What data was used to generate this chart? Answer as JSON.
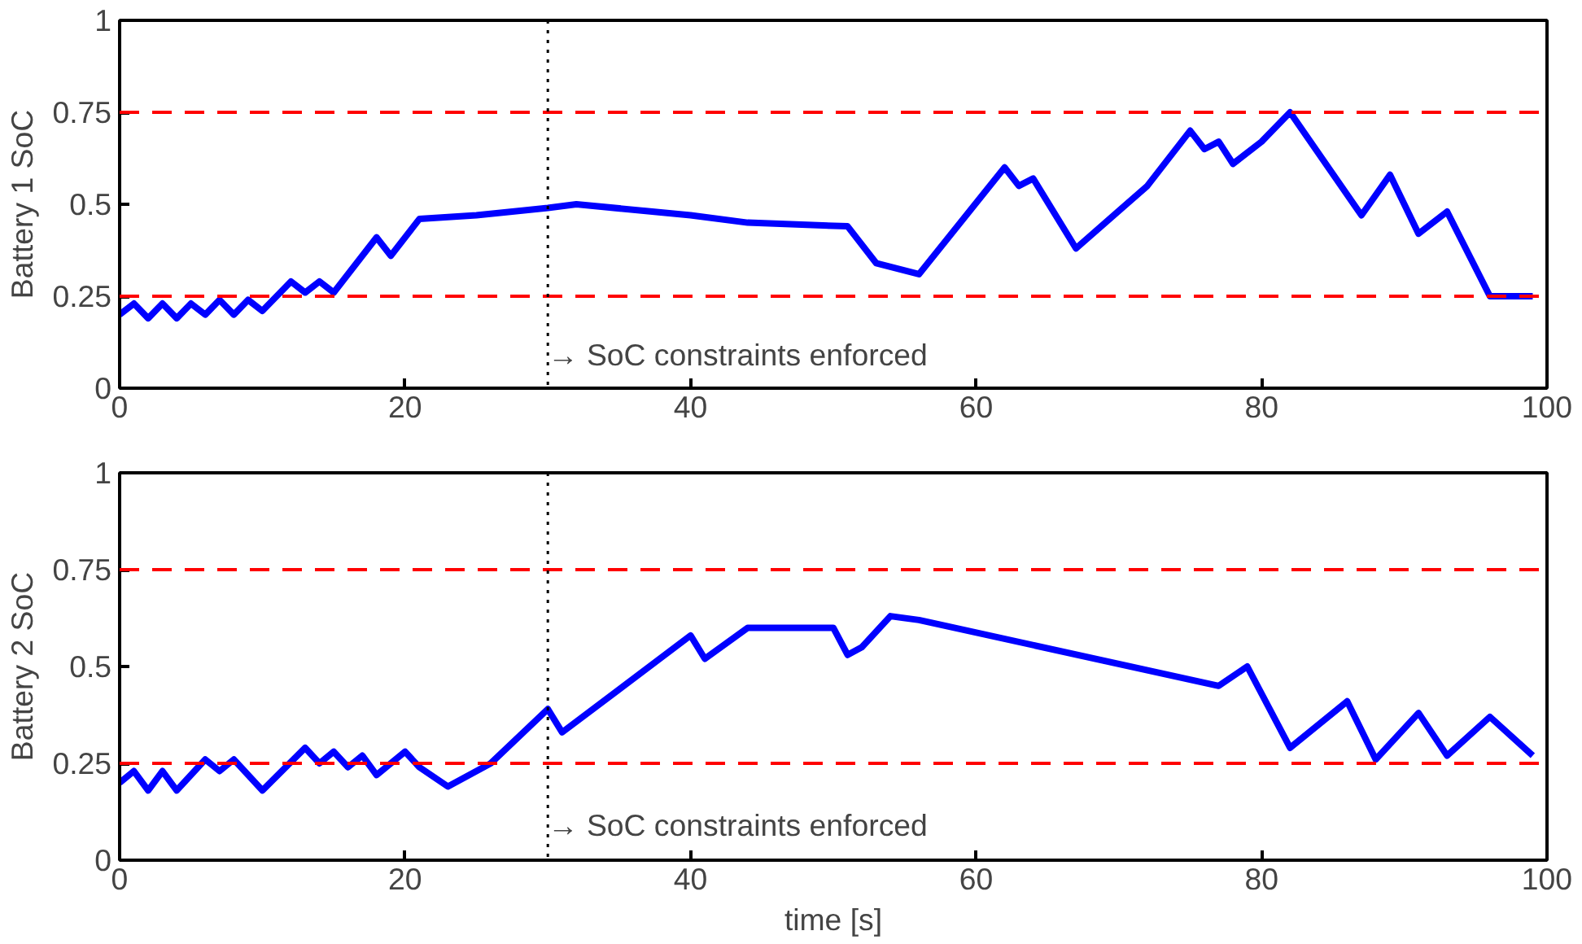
{
  "chart_data": [
    {
      "type": "line",
      "ylabel": "Battery 1 SoC",
      "xlim": [
        0,
        100
      ],
      "ylim": [
        0,
        1
      ],
      "xticks": [
        0,
        20,
        40,
        60,
        80,
        100
      ],
      "yticks": [
        0,
        0.25,
        0.5,
        0.75,
        1
      ],
      "grid": false,
      "line_style": "solid",
      "marker": "none",
      "series": [
        {
          "color": "#0000ff",
          "x": [
            0,
            1,
            2,
            3,
            4,
            5,
            6,
            7,
            8,
            9,
            10,
            12,
            13,
            14,
            15,
            18,
            19,
            21,
            25,
            30,
            32,
            40,
            44,
            51,
            53,
            56,
            62,
            63,
            64,
            67,
            72,
            75,
            76,
            77,
            78,
            80,
            82,
            87,
            89,
            91,
            93,
            96,
            99
          ],
          "values": [
            0.2,
            0.23,
            0.19,
            0.23,
            0.19,
            0.23,
            0.2,
            0.24,
            0.2,
            0.24,
            0.21,
            0.29,
            0.26,
            0.29,
            0.26,
            0.41,
            0.36,
            0.46,
            0.47,
            0.49,
            0.5,
            0.47,
            0.45,
            0.44,
            0.34,
            0.31,
            0.6,
            0.55,
            0.57,
            0.38,
            0.55,
            0.7,
            0.65,
            0.67,
            0.61,
            0.67,
            0.75,
            0.47,
            0.58,
            0.42,
            0.48,
            0.25,
            0.25
          ]
        }
      ],
      "ref_lines": [
        {
          "axis": "y",
          "value": 0.25,
          "color": "#ff0000",
          "line_style": "dashed"
        },
        {
          "axis": "y",
          "value": 0.75,
          "color": "#ff0000",
          "line_style": "dashed"
        },
        {
          "axis": "x",
          "value": 30,
          "color": "#000000",
          "line_style": "dotted"
        }
      ],
      "annotations": [
        {
          "text": "→ SoC constraints enforced",
          "x": 30,
          "y": 0.09
        }
      ]
    },
    {
      "type": "line",
      "ylabel": "Battery 2 SoC",
      "xlabel": "time [s]",
      "xlim": [
        0,
        100
      ],
      "ylim": [
        0,
        1
      ],
      "xticks": [
        0,
        20,
        40,
        60,
        80,
        100
      ],
      "yticks": [
        0,
        0.25,
        0.5,
        0.75,
        1
      ],
      "grid": false,
      "line_style": "solid",
      "marker": "none",
      "series": [
        {
          "color": "#0000ff",
          "x": [
            0,
            1,
            2,
            3,
            4,
            6,
            7,
            8,
            10,
            13,
            14,
            15,
            16,
            17,
            18,
            20,
            21,
            23,
            26,
            30,
            31,
            40,
            41,
            44,
            50,
            51,
            52,
            54,
            56,
            77,
            79,
            82,
            86,
            88,
            91,
            93,
            96,
            99
          ],
          "values": [
            0.2,
            0.23,
            0.18,
            0.23,
            0.18,
            0.26,
            0.23,
            0.26,
            0.18,
            0.29,
            0.25,
            0.28,
            0.24,
            0.27,
            0.22,
            0.28,
            0.24,
            0.19,
            0.25,
            0.39,
            0.33,
            0.58,
            0.52,
            0.6,
            0.6,
            0.53,
            0.55,
            0.63,
            0.62,
            0.45,
            0.5,
            0.29,
            0.41,
            0.26,
            0.38,
            0.27,
            0.37,
            0.27
          ]
        }
      ],
      "ref_lines": [
        {
          "axis": "y",
          "value": 0.25,
          "color": "#ff0000",
          "line_style": "dashed"
        },
        {
          "axis": "y",
          "value": 0.75,
          "color": "#ff0000",
          "line_style": "dashed"
        },
        {
          "axis": "x",
          "value": 30,
          "color": "#000000",
          "line_style": "dotted"
        }
      ],
      "annotations": [
        {
          "text": "→ SoC constraints enforced",
          "x": 30,
          "y": 0.09
        }
      ]
    }
  ]
}
